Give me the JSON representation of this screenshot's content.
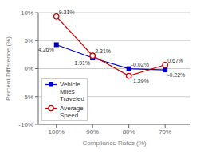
{
  "chart_data": {
    "type": "line",
    "xlabel": "Compliance Rates (%)",
    "ylabel": "Percent Difference (%)",
    "x": [
      100,
      90,
      80,
      70
    ],
    "xlim": [
      105,
      63
    ],
    "xticks": [
      {
        "value": 100,
        "label": "100%"
      },
      {
        "value": 90,
        "label": "90%"
      },
      {
        "value": 80,
        "label": "80%"
      },
      {
        "value": 70,
        "label": "70%"
      }
    ],
    "ylim": [
      -10,
      10
    ],
    "yticks": [
      {
        "value": -10,
        "label": "-10%"
      },
      {
        "value": -5,
        "label": "-5%"
      },
      {
        "value": 0,
        "label": "0%"
      },
      {
        "value": 5,
        "label": "5%"
      },
      {
        "value": 10,
        "label": "10%"
      }
    ],
    "grid": true,
    "legend": "lower left",
    "data_labels": true,
    "series": [
      {
        "name": "Vehicle\nMiles\nTraveled",
        "color": "#0000bb",
        "marker": "square",
        "values": [
          4.26,
          1.91,
          -0.02,
          -0.22
        ],
        "value_labels": [
          "4.26%",
          "1.91%",
          "-0.02%",
          "-0.22%"
        ]
      },
      {
        "name": "Average\nSpeed",
        "color": "#cc0000",
        "marker": "circle",
        "values": [
          9.31,
          2.31,
          -1.29,
          0.67
        ],
        "value_labels": [
          "9.31%",
          "2.31%",
          "-1.29%",
          "0.67%"
        ]
      }
    ]
  }
}
